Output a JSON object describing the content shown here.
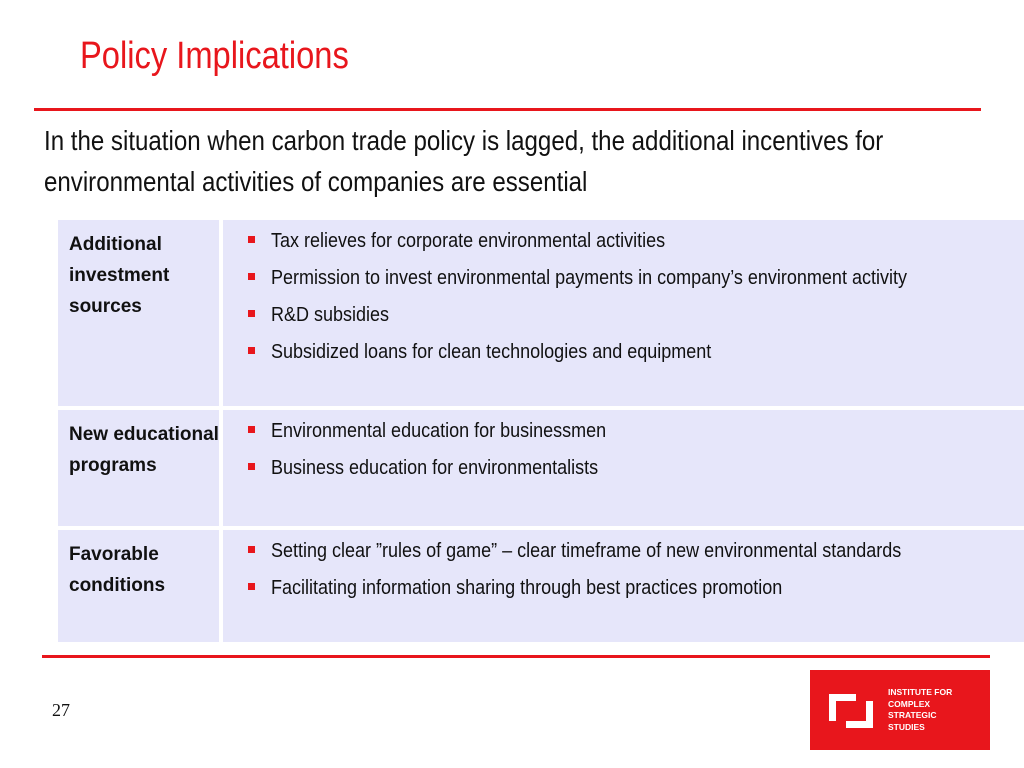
{
  "slide": {
    "title": "Policy Implications",
    "lead": "In the situation when carbon trade policy is lagged, the additional incentives for environmental activities of companies are essential",
    "page_number": "27"
  },
  "table": {
    "rows": [
      {
        "label": "Additional investment sources",
        "items": [
          "Tax relieves for corporate environmental activities",
          "Permission to invest environmental payments in company’s environment activity",
          "R&D subsidies",
          "Subsidized loans for clean technologies and equipment"
        ]
      },
      {
        "label": "New educational programs",
        "items": [
          "Environmental education for businessmen",
          "Business education for environmentalists"
        ]
      },
      {
        "label": "Favorable conditions",
        "items": [
          "Setting clear ”rules of game” – clear timeframe of new environmental standards",
          "Facilitating information sharing through best practices promotion"
        ]
      }
    ]
  },
  "logo": {
    "lines": [
      "INSTITUTE FOR",
      "COMPLEX",
      "STRATEGIC",
      "STUDIES"
    ],
    "icon": "institute-logo-mark",
    "color": "#e8161c"
  },
  "colors": {
    "accent": "#e8161c",
    "table_fill": "#e6e6fa"
  }
}
